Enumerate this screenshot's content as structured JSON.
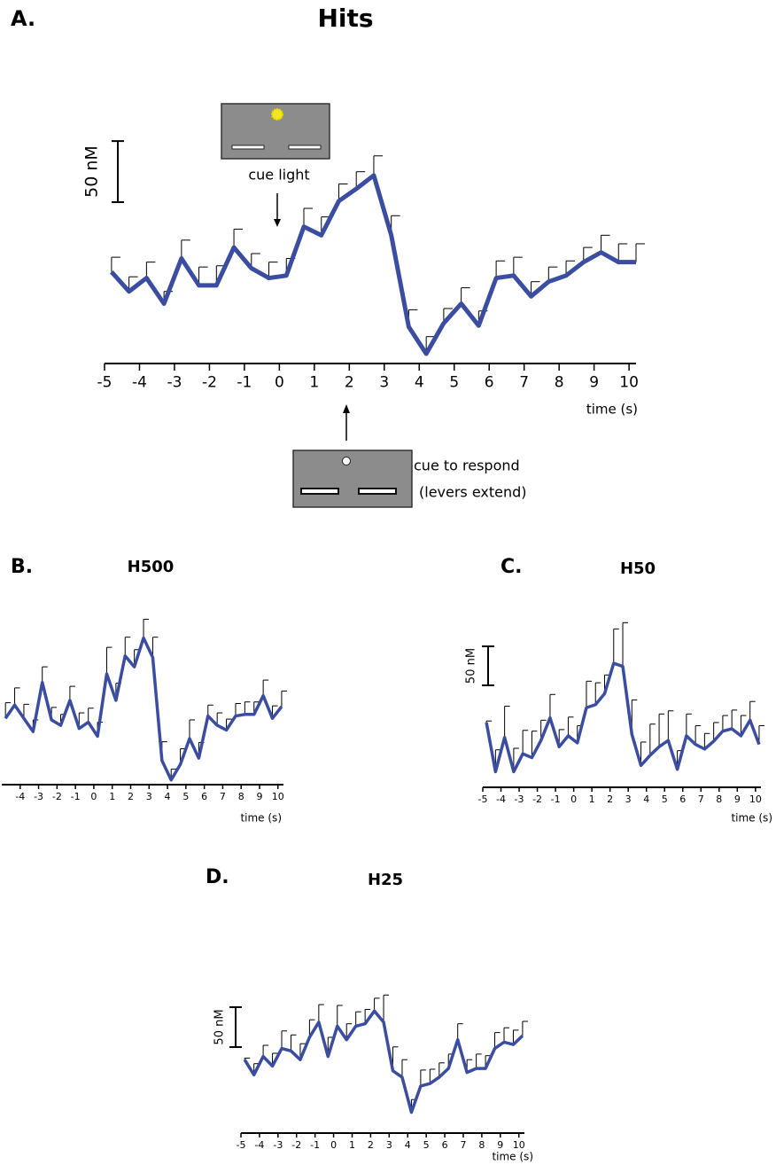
{
  "chart_data": [
    {
      "type": "line",
      "panel": "A.",
      "title": "Hits",
      "xlabel": "time (s)",
      "scale_bar": 50,
      "scale_bar_label": "50 nM",
      "annotations": [
        "cue light",
        "cue to respond",
        "(levers extend)"
      ],
      "color": "#3a4da0",
      "x": [
        -4.8,
        -4.3,
        -3.8,
        -3.3,
        -2.8,
        -2.3,
        -1.8,
        -1.3,
        -0.8,
        -0.3,
        0.2,
        0.7,
        1.2,
        1.7,
        2.2,
        2.7,
        3.2,
        3.7,
        4.2,
        4.7,
        5.2,
        5.7,
        6.2,
        6.7,
        7.2,
        7.7,
        8.2,
        8.7,
        9.2,
        9.7,
        10.2
      ],
      "values": [
        75,
        59,
        70,
        49,
        86,
        64,
        64,
        95,
        78,
        70,
        72,
        112,
        105,
        133,
        143,
        154,
        105,
        30,
        8,
        33,
        49,
        31,
        70,
        72,
        55,
        67,
        72,
        83,
        91,
        83,
        83
      ],
      "errors": [
        12,
        12,
        13,
        10,
        15,
        15,
        16,
        15,
        12,
        13,
        14,
        15,
        15,
        14,
        14,
        16,
        16,
        14,
        14,
        12,
        13,
        12,
        14,
        15,
        12,
        12,
        12,
        12,
        14,
        15,
        15
      ],
      "xlim": [
        -5,
        10.2
      ],
      "ylim": [
        0,
        180
      ],
      "xticks": [
        -5,
        -4,
        -3,
        -2,
        -1,
        0,
        1,
        2,
        3,
        4,
        5,
        6,
        7,
        8,
        9,
        10
      ]
    },
    {
      "type": "line",
      "panel": "B.",
      "title": "H500",
      "xlabel": "time (s)",
      "color": "#3a4da0",
      "x": [
        -4.8,
        -4.3,
        -3.8,
        -3.3,
        -2.8,
        -2.3,
        -1.8,
        -1.3,
        -0.8,
        -0.3,
        0.2,
        0.7,
        1.2,
        1.7,
        2.2,
        2.7,
        3.2,
        3.7,
        4.2,
        4.7,
        5.2,
        5.7,
        6.2,
        6.7,
        7.2,
        7.7,
        8.2,
        8.7,
        9.2,
        9.7,
        10.2
      ],
      "values": [
        85,
        102,
        85,
        68,
        131,
        83,
        76,
        108,
        72,
        80,
        62,
        142,
        108,
        165,
        151,
        188,
        163,
        31,
        6,
        26,
        59,
        34,
        88,
        76,
        70,
        88,
        90,
        90,
        114,
        85,
        100
      ],
      "errors": [
        20,
        22,
        18,
        15,
        20,
        16,
        14,
        18,
        20,
        18,
        18,
        34,
        22,
        24,
        22,
        24,
        26,
        24,
        14,
        20,
        24,
        20,
        14,
        16,
        14,
        16,
        16,
        16,
        20,
        16,
        20
      ],
      "xlim": [
        -5,
        10.3
      ],
      "ylim": [
        0,
        200
      ],
      "xticks": [
        -4,
        -3,
        -2,
        -1,
        0,
        1,
        2,
        3,
        4,
        5,
        6,
        7,
        8,
        9,
        10
      ]
    },
    {
      "type": "line",
      "panel": "C.",
      "title": "H50",
      "xlabel": "time (s)",
      "scale_bar": 50,
      "scale_bar_label": "50 nM",
      "color": "#3a4da0",
      "x": [
        -4.8,
        -4.3,
        -3.8,
        -3.3,
        -2.8,
        -2.3,
        -1.8,
        -1.3,
        -0.8,
        -0.3,
        0.2,
        0.7,
        1.2,
        1.7,
        2.2,
        2.7,
        3.2,
        3.7,
        4.2,
        4.7,
        5.2,
        5.7,
        6.2,
        6.7,
        7.2,
        7.7,
        8.2,
        8.7,
        9.2,
        9.7,
        10.2
      ],
      "values": [
        83,
        20,
        64,
        20,
        43,
        38,
        60,
        89,
        52,
        66,
        57,
        102,
        106,
        120,
        159,
        155,
        68,
        28,
        41,
        52,
        60,
        23,
        66,
        55,
        49,
        59,
        72,
        75,
        66,
        86,
        55
      ],
      "errors": [
        2,
        28,
        40,
        30,
        30,
        34,
        26,
        30,
        22,
        24,
        22,
        34,
        28,
        24,
        44,
        56,
        44,
        30,
        40,
        42,
        38,
        24,
        28,
        24,
        20,
        24,
        20,
        24,
        26,
        24,
        24
      ],
      "xlim": [
        -5,
        10.3
      ],
      "ylim": [
        0,
        200
      ],
      "xticks": [
        -5,
        -4,
        -3,
        -2,
        -1,
        0,
        1,
        2,
        3,
        4,
        5,
        6,
        7,
        8,
        9,
        10
      ]
    },
    {
      "type": "line",
      "panel": "D.",
      "title": "H25",
      "xlabel": "time (s)",
      "scale_bar": 50,
      "scale_bar_label": "50 nM",
      "color": "#3a4da0",
      "x": [
        -4.8,
        -4.3,
        -3.8,
        -3.3,
        -2.8,
        -2.3,
        -1.8,
        -1.3,
        -0.8,
        -0.3,
        0.2,
        0.7,
        1.2,
        1.7,
        2.2,
        2.7,
        3.2,
        3.7,
        4.2,
        4.7,
        5.2,
        5.7,
        6.2,
        6.7,
        7.2,
        7.7,
        8.2,
        8.7,
        9.2,
        9.7,
        10.2
      ],
      "values": [
        92,
        73,
        96,
        84,
        106,
        103,
        92,
        120,
        139,
        96,
        134,
        117,
        134,
        137,
        153,
        139,
        78,
        70,
        26,
        59,
        62,
        70,
        81,
        117,
        76,
        81,
        81,
        106,
        114,
        111,
        122
      ],
      "errors": [
        2,
        14,
        14,
        16,
        22,
        20,
        20,
        22,
        22,
        24,
        26,
        20,
        18,
        18,
        16,
        34,
        30,
        22,
        16,
        20,
        18,
        18,
        18,
        20,
        16,
        18,
        16,
        20,
        18,
        18,
        18
      ],
      "xlim": [
        -5,
        10.3
      ],
      "ylim": [
        0,
        170
      ],
      "xticks": [
        -5,
        -4,
        -3,
        -2,
        -1,
        0,
        1,
        2,
        3,
        4,
        5,
        6,
        7,
        8,
        9,
        10
      ]
    }
  ]
}
